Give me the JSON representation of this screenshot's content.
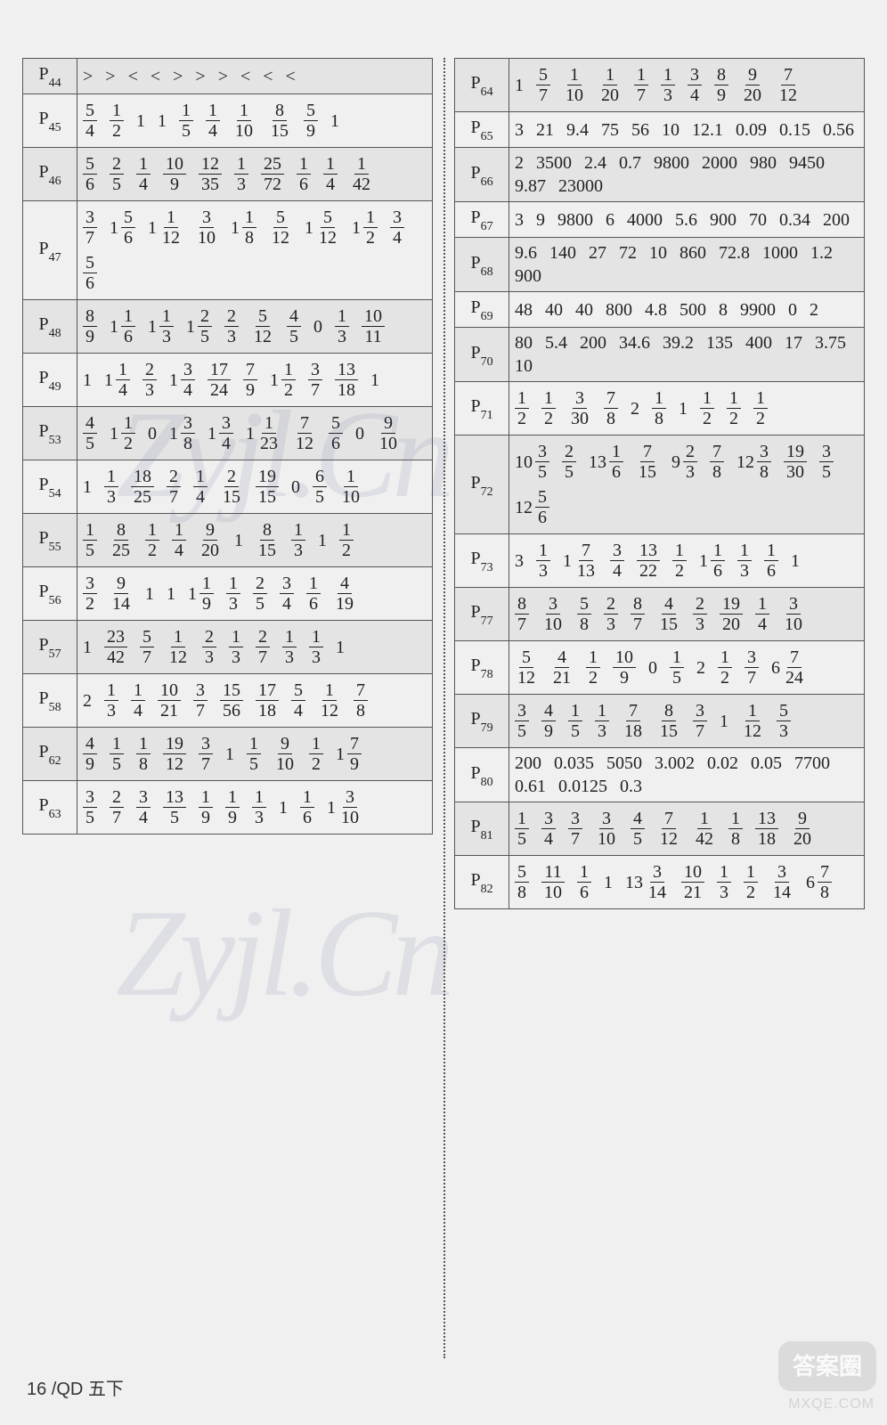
{
  "footer": "16 /QD 五下",
  "watermark": "Zyjl.Cn",
  "stamp": "答案圈",
  "stamp_url": "MXQE.COM",
  "left": [
    {
      "page": "44",
      "shade": true,
      "items": [
        ">",
        ">",
        "<",
        "<",
        ">",
        ">",
        ">",
        "<",
        "<",
        "<"
      ]
    },
    {
      "page": "45",
      "shade": false,
      "items": [
        {
          "t": "f",
          "n": 5,
          "d": 4
        },
        {
          "t": "f",
          "n": 1,
          "d": 2
        },
        "1",
        "1",
        {
          "t": "f",
          "n": 1,
          "d": 5
        },
        {
          "t": "f",
          "n": 1,
          "d": 4
        },
        {
          "t": "f",
          "n": 1,
          "d": 10
        },
        {
          "t": "f",
          "n": 8,
          "d": 15
        },
        {
          "t": "f",
          "n": 5,
          "d": 9
        },
        "1"
      ]
    },
    {
      "page": "46",
      "shade": true,
      "items": [
        {
          "t": "f",
          "n": 5,
          "d": 6
        },
        {
          "t": "f",
          "n": 2,
          "d": 5
        },
        {
          "t": "f",
          "n": 1,
          "d": 4
        },
        {
          "t": "f",
          "n": 10,
          "d": 9
        },
        {
          "t": "f",
          "n": 12,
          "d": 35
        },
        {
          "t": "f",
          "n": 1,
          "d": 3
        },
        {
          "t": "f",
          "n": 25,
          "d": 72
        },
        {
          "t": "f",
          "n": 1,
          "d": 6
        },
        {
          "t": "f",
          "n": 1,
          "d": 4
        },
        {
          "t": "f",
          "n": 1,
          "d": 42
        }
      ]
    },
    {
      "page": "47",
      "shade": false,
      "items": [
        {
          "t": "f",
          "n": 3,
          "d": 7
        },
        {
          "t": "m",
          "w": 1,
          "n": 5,
          "d": 6
        },
        {
          "t": "m",
          "w": 1,
          "n": 1,
          "d": 12
        },
        {
          "t": "f",
          "n": 3,
          "d": 10
        },
        {
          "t": "m",
          "w": 1,
          "n": 1,
          "d": 8
        },
        {
          "t": "f",
          "n": 5,
          "d": 12
        },
        {
          "t": "m",
          "w": 1,
          "n": 5,
          "d": 12
        },
        {
          "t": "m",
          "w": 1,
          "n": 1,
          "d": 2
        },
        {
          "t": "f",
          "n": 3,
          "d": 4
        },
        {
          "t": "f",
          "n": 5,
          "d": 6
        }
      ]
    },
    {
      "page": "48",
      "shade": true,
      "items": [
        {
          "t": "f",
          "n": 8,
          "d": 9
        },
        {
          "t": "m",
          "w": 1,
          "n": 1,
          "d": 6
        },
        {
          "t": "m",
          "w": 1,
          "n": 1,
          "d": 3
        },
        {
          "t": "m",
          "w": 1,
          "n": 2,
          "d": 5
        },
        {
          "t": "f",
          "n": 2,
          "d": 3
        },
        {
          "t": "f",
          "n": 5,
          "d": 12
        },
        {
          "t": "f",
          "n": 4,
          "d": 5
        },
        "0",
        {
          "t": "f",
          "n": 1,
          "d": 3
        },
        {
          "t": "f",
          "n": 10,
          "d": 11
        }
      ]
    },
    {
      "page": "49",
      "shade": false,
      "items": [
        "1",
        {
          "t": "m",
          "w": 1,
          "n": 1,
          "d": 4
        },
        {
          "t": "f",
          "n": 2,
          "d": 3
        },
        {
          "t": "m",
          "w": 1,
          "n": 3,
          "d": 4
        },
        {
          "t": "f",
          "n": 17,
          "d": 24
        },
        {
          "t": "f",
          "n": 7,
          "d": 9
        },
        {
          "t": "m",
          "w": 1,
          "n": 1,
          "d": 2
        },
        {
          "t": "f",
          "n": 3,
          "d": 7
        },
        {
          "t": "f",
          "n": 13,
          "d": 18
        },
        "1"
      ]
    },
    {
      "page": "53",
      "shade": true,
      "items": [
        {
          "t": "f",
          "n": 4,
          "d": 5
        },
        {
          "t": "m",
          "w": 1,
          "n": 1,
          "d": 2
        },
        "0",
        {
          "t": "m",
          "w": 1,
          "n": 3,
          "d": 8
        },
        {
          "t": "m",
          "w": 1,
          "n": 3,
          "d": 4
        },
        {
          "t": "m",
          "w": 1,
          "n": 1,
          "d": 23
        },
        {
          "t": "f",
          "n": 7,
          "d": 12
        },
        {
          "t": "f",
          "n": 5,
          "d": 6
        },
        "0",
        {
          "t": "f",
          "n": 9,
          "d": 10
        }
      ]
    },
    {
      "page": "54",
      "shade": false,
      "items": [
        "1",
        {
          "t": "f",
          "n": 1,
          "d": 3
        },
        {
          "t": "f",
          "n": 18,
          "d": 25
        },
        {
          "t": "f",
          "n": 2,
          "d": 7
        },
        {
          "t": "f",
          "n": 1,
          "d": 4
        },
        {
          "t": "f",
          "n": 2,
          "d": 15
        },
        {
          "t": "f",
          "n": 19,
          "d": 15
        },
        "0",
        {
          "t": "f",
          "n": 6,
          "d": 5
        },
        {
          "t": "f",
          "n": 1,
          "d": 10
        }
      ]
    },
    {
      "page": "55",
      "shade": true,
      "items": [
        {
          "t": "f",
          "n": 1,
          "d": 5
        },
        {
          "t": "f",
          "n": 8,
          "d": 25
        },
        {
          "t": "f",
          "n": 1,
          "d": 2
        },
        {
          "t": "f",
          "n": 1,
          "d": 4
        },
        {
          "t": "f",
          "n": 9,
          "d": 20
        },
        "1",
        {
          "t": "f",
          "n": 8,
          "d": 15
        },
        {
          "t": "f",
          "n": 1,
          "d": 3
        },
        "1",
        {
          "t": "f",
          "n": 1,
          "d": 2
        }
      ]
    },
    {
      "page": "56",
      "shade": false,
      "items": [
        {
          "t": "f",
          "n": 3,
          "d": 2
        },
        {
          "t": "f",
          "n": 9,
          "d": 14
        },
        "1",
        "1",
        {
          "t": "m",
          "w": 1,
          "n": 1,
          "d": 9
        },
        {
          "t": "f",
          "n": 1,
          "d": 3
        },
        {
          "t": "f",
          "n": 2,
          "d": 5
        },
        {
          "t": "f",
          "n": 3,
          "d": 4
        },
        {
          "t": "f",
          "n": 1,
          "d": 6
        },
        {
          "t": "f",
          "n": 4,
          "d": 19
        }
      ]
    },
    {
      "page": "57",
      "shade": true,
      "items": [
        "1",
        {
          "t": "f",
          "n": 23,
          "d": 42
        },
        {
          "t": "f",
          "n": 5,
          "d": 7
        },
        {
          "t": "f",
          "n": 1,
          "d": 12
        },
        {
          "t": "f",
          "n": 2,
          "d": 3
        },
        {
          "t": "f",
          "n": 1,
          "d": 3
        },
        {
          "t": "f",
          "n": 2,
          "d": 7
        },
        {
          "t": "f",
          "n": 1,
          "d": 3
        },
        {
          "t": "f",
          "n": 1,
          "d": 3
        },
        "1"
      ]
    },
    {
      "page": "58",
      "shade": false,
      "items": [
        "2",
        {
          "t": "f",
          "n": 1,
          "d": 3
        },
        {
          "t": "f",
          "n": 1,
          "d": 4
        },
        {
          "t": "f",
          "n": 10,
          "d": 21
        },
        {
          "t": "f",
          "n": 3,
          "d": 7
        },
        {
          "t": "f",
          "n": 15,
          "d": 56
        },
        {
          "t": "f",
          "n": 17,
          "d": 18
        },
        {
          "t": "f",
          "n": 5,
          "d": 4
        },
        {
          "t": "f",
          "n": 1,
          "d": 12
        },
        {
          "t": "f",
          "n": 7,
          "d": 8
        }
      ]
    },
    {
      "page": "62",
      "shade": true,
      "items": [
        {
          "t": "f",
          "n": 4,
          "d": 9
        },
        {
          "t": "f",
          "n": 1,
          "d": 5
        },
        {
          "t": "f",
          "n": 1,
          "d": 8
        },
        {
          "t": "f",
          "n": 19,
          "d": 12
        },
        {
          "t": "f",
          "n": 3,
          "d": 7
        },
        "1",
        {
          "t": "f",
          "n": 1,
          "d": 5
        },
        {
          "t": "f",
          "n": 9,
          "d": 10
        },
        {
          "t": "f",
          "n": 1,
          "d": 2
        },
        {
          "t": "m",
          "w": 1,
          "n": 7,
          "d": 9
        }
      ]
    },
    {
      "page": "63",
      "shade": false,
      "items": [
        {
          "t": "f",
          "n": 3,
          "d": 5
        },
        {
          "t": "f",
          "n": 2,
          "d": 7
        },
        {
          "t": "f",
          "n": 3,
          "d": 4
        },
        {
          "t": "f",
          "n": 13,
          "d": 5
        },
        {
          "t": "f",
          "n": 1,
          "d": 9
        },
        {
          "t": "f",
          "n": 1,
          "d": 9
        },
        {
          "t": "f",
          "n": 1,
          "d": 3
        },
        "1",
        {
          "t": "f",
          "n": 1,
          "d": 6
        },
        {
          "t": "m",
          "w": 1,
          "n": 3,
          "d": 10
        }
      ]
    }
  ],
  "right": [
    {
      "page": "64",
      "shade": true,
      "items": [
        "1",
        {
          "t": "f",
          "n": 5,
          "d": 7
        },
        {
          "t": "f",
          "n": 1,
          "d": 10
        },
        {
          "t": "f",
          "n": 1,
          "d": 20
        },
        {
          "t": "f",
          "n": 1,
          "d": 7
        },
        {
          "t": "f",
          "n": 1,
          "d": 3
        },
        {
          "t": "f",
          "n": 3,
          "d": 4
        },
        {
          "t": "f",
          "n": 8,
          "d": 9
        },
        {
          "t": "f",
          "n": 9,
          "d": 20
        },
        {
          "t": "f",
          "n": 7,
          "d": 12
        }
      ]
    },
    {
      "page": "65",
      "shade": false,
      "items": [
        "3",
        "21",
        "9.4",
        "75",
        "56",
        "10",
        "12.1",
        "0.09",
        "0.15",
        "0.56"
      ]
    },
    {
      "page": "66",
      "shade": true,
      "items": [
        "2",
        "3500",
        "2.4",
        "0.7",
        "9800",
        "2000",
        "980",
        "9450",
        "9.87",
        "23000"
      ]
    },
    {
      "page": "67",
      "shade": false,
      "items": [
        "3",
        "9",
        "9800",
        "6",
        "4000",
        "5.6",
        "900",
        "70",
        "0.34",
        "200"
      ]
    },
    {
      "page": "68",
      "shade": true,
      "items": [
        "9.6",
        "140",
        "27",
        "72",
        "10",
        "860",
        "72.8",
        "1000",
        "1.2",
        "900"
      ]
    },
    {
      "page": "69",
      "shade": false,
      "items": [
        "48",
        "40",
        "40",
        "800",
        "4.8",
        "500",
        "8",
        "9900",
        "0",
        "2"
      ]
    },
    {
      "page": "70",
      "shade": true,
      "items": [
        "80",
        "5.4",
        "200",
        "34.6",
        "39.2",
        "135",
        "400",
        "17",
        "3.75",
        "10"
      ]
    },
    {
      "page": "71",
      "shade": false,
      "items": [
        {
          "t": "f",
          "n": 1,
          "d": 2
        },
        {
          "t": "f",
          "n": 1,
          "d": 2
        },
        {
          "t": "f",
          "n": 3,
          "d": 30
        },
        {
          "t": "f",
          "n": 7,
          "d": 8
        },
        "2",
        {
          "t": "f",
          "n": 1,
          "d": 8
        },
        "1",
        {
          "t": "f",
          "n": 1,
          "d": 2
        },
        {
          "t": "f",
          "n": 1,
          "d": 2
        },
        {
          "t": "f",
          "n": 1,
          "d": 2
        }
      ]
    },
    {
      "page": "72",
      "shade": true,
      "items": [
        {
          "t": "m",
          "w": 10,
          "n": 3,
          "d": 5
        },
        {
          "t": "f",
          "n": 2,
          "d": 5
        },
        {
          "t": "m",
          "w": 13,
          "n": 1,
          "d": 6
        },
        {
          "t": "f",
          "n": 7,
          "d": 15
        },
        {
          "t": "m",
          "w": 9,
          "n": 2,
          "d": 3
        },
        {
          "t": "f",
          "n": 7,
          "d": 8
        },
        {
          "t": "m",
          "w": 12,
          "n": 3,
          "d": 8
        },
        {
          "t": "f",
          "n": 19,
          "d": 30
        },
        {
          "t": "f",
          "n": 3,
          "d": 5
        },
        {
          "t": "m",
          "w": 12,
          "n": 5,
          "d": 6
        }
      ]
    },
    {
      "page": "73",
      "shade": false,
      "items": [
        "3",
        {
          "t": "f",
          "n": 1,
          "d": 3
        },
        {
          "t": "m",
          "w": 1,
          "n": 7,
          "d": 13
        },
        {
          "t": "f",
          "n": 3,
          "d": 4
        },
        {
          "t": "f",
          "n": 13,
          "d": 22
        },
        {
          "t": "f",
          "n": 1,
          "d": 2
        },
        {
          "t": "m",
          "w": 1,
          "n": 1,
          "d": 6
        },
        {
          "t": "f",
          "n": 1,
          "d": 3
        },
        {
          "t": "f",
          "n": 1,
          "d": 6
        },
        "1"
      ]
    },
    {
      "page": "77",
      "shade": true,
      "items": [
        {
          "t": "f",
          "n": 8,
          "d": 7
        },
        {
          "t": "f",
          "n": 3,
          "d": 10
        },
        {
          "t": "f",
          "n": 5,
          "d": 8
        },
        {
          "t": "f",
          "n": 2,
          "d": 3
        },
        {
          "t": "f",
          "n": 8,
          "d": 7
        },
        {
          "t": "f",
          "n": 4,
          "d": 15
        },
        {
          "t": "f",
          "n": 2,
          "d": 3
        },
        {
          "t": "f",
          "n": 19,
          "d": 20
        },
        {
          "t": "f",
          "n": 1,
          "d": 4
        },
        {
          "t": "f",
          "n": 3,
          "d": 10
        }
      ]
    },
    {
      "page": "78",
      "shade": false,
      "items": [
        {
          "t": "f",
          "n": 5,
          "d": 12
        },
        {
          "t": "f",
          "n": 4,
          "d": 21
        },
        {
          "t": "f",
          "n": 1,
          "d": 2
        },
        {
          "t": "f",
          "n": 10,
          "d": 9
        },
        "0",
        {
          "t": "f",
          "n": 1,
          "d": 5
        },
        "2",
        {
          "t": "f",
          "n": 1,
          "d": 2
        },
        {
          "t": "f",
          "n": 3,
          "d": 7
        },
        {
          "t": "m",
          "w": 6,
          "n": 7,
          "d": 24
        }
      ]
    },
    {
      "page": "79",
      "shade": true,
      "items": [
        {
          "t": "f",
          "n": 3,
          "d": 5
        },
        {
          "t": "f",
          "n": 4,
          "d": 9
        },
        {
          "t": "f",
          "n": 1,
          "d": 5
        },
        {
          "t": "f",
          "n": 1,
          "d": 3
        },
        {
          "t": "f",
          "n": 7,
          "d": 18
        },
        {
          "t": "f",
          "n": 8,
          "d": 15
        },
        {
          "t": "f",
          "n": 3,
          "d": 7
        },
        "1",
        {
          "t": "f",
          "n": 1,
          "d": 12
        },
        {
          "t": "f",
          "n": 5,
          "d": 3
        }
      ]
    },
    {
      "page": "80",
      "shade": false,
      "items": [
        "200",
        "0.035",
        "5050",
        "3.002",
        "0.02",
        "0.05",
        "7700",
        "0.61",
        "0.0125",
        "0.3"
      ]
    },
    {
      "page": "81",
      "shade": true,
      "items": [
        {
          "t": "f",
          "n": 1,
          "d": 5
        },
        {
          "t": "f",
          "n": 3,
          "d": 4
        },
        {
          "t": "f",
          "n": 3,
          "d": 7
        },
        {
          "t": "f",
          "n": 3,
          "d": 10
        },
        {
          "t": "f",
          "n": 4,
          "d": 5
        },
        {
          "t": "f",
          "n": 7,
          "d": 12
        },
        {
          "t": "f",
          "n": 1,
          "d": 42
        },
        {
          "t": "f",
          "n": 1,
          "d": 8
        },
        {
          "t": "f",
          "n": 13,
          "d": 18
        },
        {
          "t": "f",
          "n": 9,
          "d": 20
        }
      ]
    },
    {
      "page": "82",
      "shade": false,
      "items": [
        {
          "t": "f",
          "n": 5,
          "d": 8
        },
        {
          "t": "f",
          "n": 11,
          "d": 10
        },
        {
          "t": "f",
          "n": 1,
          "d": 6
        },
        "1",
        {
          "t": "m",
          "w": 13,
          "n": 3,
          "d": 14
        },
        {
          "t": "f",
          "n": 10,
          "d": 21
        },
        {
          "t": "f",
          "n": 1,
          "d": 3
        },
        {
          "t": "f",
          "n": 1,
          "d": 2
        },
        {
          "t": "f",
          "n": 3,
          "d": 14
        },
        {
          "t": "m",
          "w": 6,
          "n": 7,
          "d": 8
        }
      ]
    }
  ]
}
